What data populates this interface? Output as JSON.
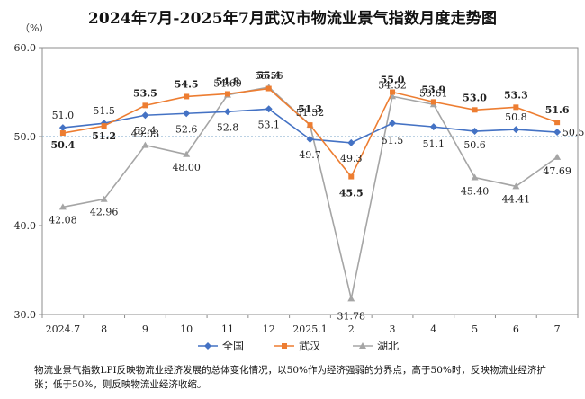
{
  "chart_data": {
    "type": "line",
    "title": "2024年7月-2025年7月武汉市物流业景气指数月度走势图",
    "unit_label": "（%）",
    "categories": [
      "2024.7",
      "8",
      "9",
      "10",
      "11",
      "12",
      "2025.1",
      "2",
      "3",
      "4",
      "5",
      "6",
      "7"
    ],
    "y_ticks": [
      "30.0",
      "40.0",
      "50.0",
      "60.0"
    ],
    "ylim": [
      30,
      60
    ],
    "reference_line": 50,
    "legend_position": "bottom",
    "series": [
      {
        "name": "全国",
        "color": "#4472C4",
        "marker": "diamond",
        "values": [
          51.0,
          51.5,
          52.4,
          52.6,
          52.8,
          53.1,
          49.7,
          49.3,
          51.5,
          51.1,
          50.6,
          50.8,
          50.5
        ],
        "labels": [
          "51.0",
          "51.5",
          "52.4",
          "52.6",
          "52.8",
          "53.1",
          "49.7",
          "49.3",
          "51.5",
          "51.1",
          "50.6",
          "50.8",
          "50.5"
        ]
      },
      {
        "name": "武汉",
        "color": "#ED7D31",
        "marker": "square",
        "values": [
          50.4,
          51.2,
          53.5,
          54.5,
          54.8,
          55.4,
          51.3,
          45.5,
          55.0,
          53.9,
          53.0,
          53.3,
          51.6
        ],
        "labels": [
          "50.4",
          "51.2",
          "53.5",
          "54.5",
          "54.8",
          "55.4",
          "51.3",
          "45.5",
          "55.0",
          "53.9",
          "53.0",
          "53.3",
          "51.6"
        ]
      },
      {
        "name": "湖北",
        "color": "#A5A5A5",
        "marker": "triangle",
        "values": [
          42.08,
          42.96,
          49.03,
          48.0,
          54.69,
          55.56,
          51.32,
          31.78,
          54.52,
          53.61,
          45.4,
          44.41,
          47.69
        ],
        "labels": [
          "42.08",
          "42.96",
          "49.03",
          "48.00",
          "54.69",
          "55.56",
          "51.32",
          "31.78",
          "54.52",
          "53.61",
          "45.40",
          "44.41",
          "47.69"
        ]
      }
    ]
  },
  "footnote": "物流业景气指数LPI反映物流业经济发展的总体变化情况，以50%作为经济强弱的分界点，高于50%时，反映物流业经济扩张；低于50%，则反映物流业经济收缩。"
}
